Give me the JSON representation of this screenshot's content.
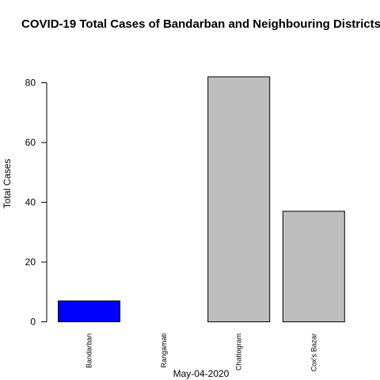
{
  "chart_data": {
    "type": "bar",
    "title": "COVID-19 Total Cases of Bandarban and Neighbouring Districts",
    "xlabel": "May-04-2020",
    "ylabel": "Total Cases",
    "categories": [
      "Bandarban",
      "Rangamati",
      "Chattogram",
      "Cox's Bazar"
    ],
    "values": [
      7,
      0,
      82,
      37
    ],
    "bar_colors": [
      "#0000ff",
      "#bebebe",
      "#bebebe",
      "#bebebe"
    ],
    "y_ticks": [
      0,
      20,
      40,
      60,
      80
    ],
    "ylim": [
      0,
      82
    ],
    "grid": false,
    "legend": "none"
  }
}
